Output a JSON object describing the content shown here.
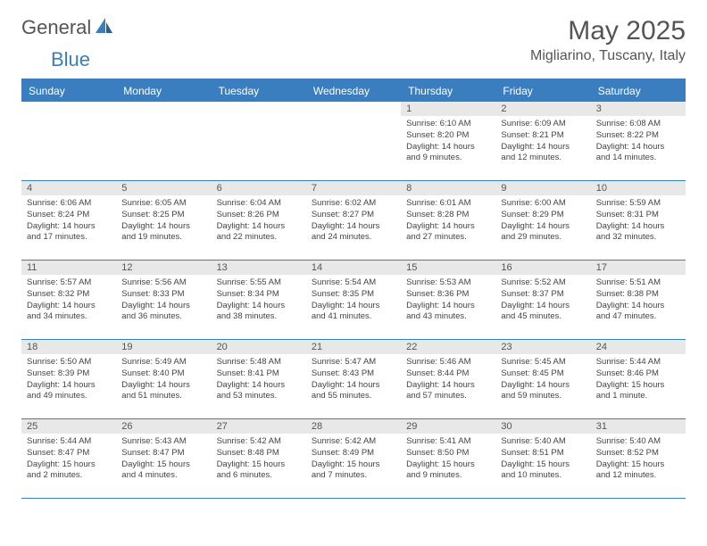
{
  "brand": {
    "general": "General",
    "blue": "Blue"
  },
  "title": "May 2025",
  "location": "Migliarino, Tuscany, Italy",
  "colors": {
    "accent": "#3a7ebf",
    "daynum_bg": "#e8e8e8",
    "text": "#555555",
    "body_text": "#444444",
    "background": "#ffffff"
  },
  "day_labels": [
    "Sunday",
    "Monday",
    "Tuesday",
    "Wednesday",
    "Thursday",
    "Friday",
    "Saturday"
  ],
  "weeks": [
    [
      {
        "n": "",
        "sr": "",
        "ss": "",
        "dl": ""
      },
      {
        "n": "",
        "sr": "",
        "ss": "",
        "dl": ""
      },
      {
        "n": "",
        "sr": "",
        "ss": "",
        "dl": ""
      },
      {
        "n": "",
        "sr": "",
        "ss": "",
        "dl": ""
      },
      {
        "n": "1",
        "sr": "Sunrise: 6:10 AM",
        "ss": "Sunset: 8:20 PM",
        "dl": "Daylight: 14 hours and 9 minutes."
      },
      {
        "n": "2",
        "sr": "Sunrise: 6:09 AM",
        "ss": "Sunset: 8:21 PM",
        "dl": "Daylight: 14 hours and 12 minutes."
      },
      {
        "n": "3",
        "sr": "Sunrise: 6:08 AM",
        "ss": "Sunset: 8:22 PM",
        "dl": "Daylight: 14 hours and 14 minutes."
      }
    ],
    [
      {
        "n": "4",
        "sr": "Sunrise: 6:06 AM",
        "ss": "Sunset: 8:24 PM",
        "dl": "Daylight: 14 hours and 17 minutes."
      },
      {
        "n": "5",
        "sr": "Sunrise: 6:05 AM",
        "ss": "Sunset: 8:25 PM",
        "dl": "Daylight: 14 hours and 19 minutes."
      },
      {
        "n": "6",
        "sr": "Sunrise: 6:04 AM",
        "ss": "Sunset: 8:26 PM",
        "dl": "Daylight: 14 hours and 22 minutes."
      },
      {
        "n": "7",
        "sr": "Sunrise: 6:02 AM",
        "ss": "Sunset: 8:27 PM",
        "dl": "Daylight: 14 hours and 24 minutes."
      },
      {
        "n": "8",
        "sr": "Sunrise: 6:01 AM",
        "ss": "Sunset: 8:28 PM",
        "dl": "Daylight: 14 hours and 27 minutes."
      },
      {
        "n": "9",
        "sr": "Sunrise: 6:00 AM",
        "ss": "Sunset: 8:29 PM",
        "dl": "Daylight: 14 hours and 29 minutes."
      },
      {
        "n": "10",
        "sr": "Sunrise: 5:59 AM",
        "ss": "Sunset: 8:31 PM",
        "dl": "Daylight: 14 hours and 32 minutes."
      }
    ],
    [
      {
        "n": "11",
        "sr": "Sunrise: 5:57 AM",
        "ss": "Sunset: 8:32 PM",
        "dl": "Daylight: 14 hours and 34 minutes."
      },
      {
        "n": "12",
        "sr": "Sunrise: 5:56 AM",
        "ss": "Sunset: 8:33 PM",
        "dl": "Daylight: 14 hours and 36 minutes."
      },
      {
        "n": "13",
        "sr": "Sunrise: 5:55 AM",
        "ss": "Sunset: 8:34 PM",
        "dl": "Daylight: 14 hours and 38 minutes."
      },
      {
        "n": "14",
        "sr": "Sunrise: 5:54 AM",
        "ss": "Sunset: 8:35 PM",
        "dl": "Daylight: 14 hours and 41 minutes."
      },
      {
        "n": "15",
        "sr": "Sunrise: 5:53 AM",
        "ss": "Sunset: 8:36 PM",
        "dl": "Daylight: 14 hours and 43 minutes."
      },
      {
        "n": "16",
        "sr": "Sunrise: 5:52 AM",
        "ss": "Sunset: 8:37 PM",
        "dl": "Daylight: 14 hours and 45 minutes."
      },
      {
        "n": "17",
        "sr": "Sunrise: 5:51 AM",
        "ss": "Sunset: 8:38 PM",
        "dl": "Daylight: 14 hours and 47 minutes."
      }
    ],
    [
      {
        "n": "18",
        "sr": "Sunrise: 5:50 AM",
        "ss": "Sunset: 8:39 PM",
        "dl": "Daylight: 14 hours and 49 minutes."
      },
      {
        "n": "19",
        "sr": "Sunrise: 5:49 AM",
        "ss": "Sunset: 8:40 PM",
        "dl": "Daylight: 14 hours and 51 minutes."
      },
      {
        "n": "20",
        "sr": "Sunrise: 5:48 AM",
        "ss": "Sunset: 8:41 PM",
        "dl": "Daylight: 14 hours and 53 minutes."
      },
      {
        "n": "21",
        "sr": "Sunrise: 5:47 AM",
        "ss": "Sunset: 8:43 PM",
        "dl": "Daylight: 14 hours and 55 minutes."
      },
      {
        "n": "22",
        "sr": "Sunrise: 5:46 AM",
        "ss": "Sunset: 8:44 PM",
        "dl": "Daylight: 14 hours and 57 minutes."
      },
      {
        "n": "23",
        "sr": "Sunrise: 5:45 AM",
        "ss": "Sunset: 8:45 PM",
        "dl": "Daylight: 14 hours and 59 minutes."
      },
      {
        "n": "24",
        "sr": "Sunrise: 5:44 AM",
        "ss": "Sunset: 8:46 PM",
        "dl": "Daylight: 15 hours and 1 minute."
      }
    ],
    [
      {
        "n": "25",
        "sr": "Sunrise: 5:44 AM",
        "ss": "Sunset: 8:47 PM",
        "dl": "Daylight: 15 hours and 2 minutes."
      },
      {
        "n": "26",
        "sr": "Sunrise: 5:43 AM",
        "ss": "Sunset: 8:47 PM",
        "dl": "Daylight: 15 hours and 4 minutes."
      },
      {
        "n": "27",
        "sr": "Sunrise: 5:42 AM",
        "ss": "Sunset: 8:48 PM",
        "dl": "Daylight: 15 hours and 6 minutes."
      },
      {
        "n": "28",
        "sr": "Sunrise: 5:42 AM",
        "ss": "Sunset: 8:49 PM",
        "dl": "Daylight: 15 hours and 7 minutes."
      },
      {
        "n": "29",
        "sr": "Sunrise: 5:41 AM",
        "ss": "Sunset: 8:50 PM",
        "dl": "Daylight: 15 hours and 9 minutes."
      },
      {
        "n": "30",
        "sr": "Sunrise: 5:40 AM",
        "ss": "Sunset: 8:51 PM",
        "dl": "Daylight: 15 hours and 10 minutes."
      },
      {
        "n": "31",
        "sr": "Sunrise: 5:40 AM",
        "ss": "Sunset: 8:52 PM",
        "dl": "Daylight: 15 hours and 12 minutes."
      }
    ]
  ]
}
